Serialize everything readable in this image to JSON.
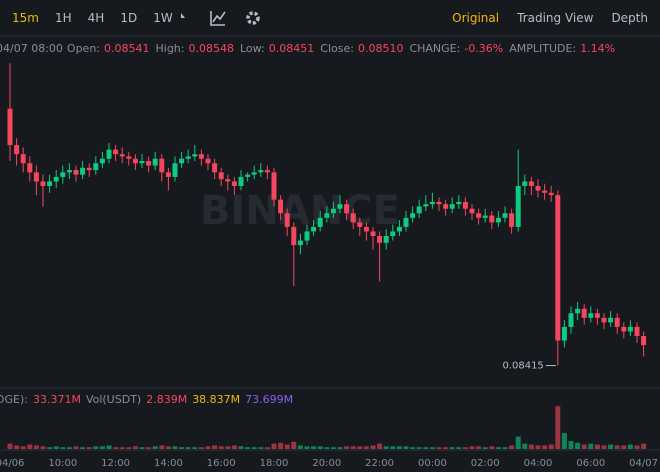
{
  "toolbar": {
    "intervals": [
      "15m",
      "1H",
      "4H",
      "1D",
      "1W"
    ],
    "views": [
      "Original",
      "Trading View",
      "Depth"
    ]
  },
  "info": {
    "time": "04/07 08:00",
    "fields": [
      {
        "label": "Open:",
        "value": "0.08541"
      },
      {
        "label": "High:",
        "value": "0.08548"
      },
      {
        "label": "Low:",
        "value": "0.08451"
      },
      {
        "label": "Close:",
        "value": "0.08510"
      },
      {
        "label": "CHANGE:",
        "value": "-0.36%"
      },
      {
        "label": "AMPLITUDE:",
        "value": "1.14%"
      }
    ]
  },
  "volume_legend": [
    {
      "label": "DGE):",
      "value": "33.371M",
      "color": "#f6465d"
    },
    {
      "label": "Vol(USDT)",
      "value": "2.839M",
      "color": "#f6465d"
    },
    {
      "label": "",
      "value": "38.837M",
      "color": "#f0b90b"
    },
    {
      "label": "",
      "value": "73.699M",
      "color": "#8e5cf7"
    }
  ],
  "chart_data": {
    "type": "candlestick",
    "watermark": "BINANCE",
    "low_label": "0.08415",
    "up_color": "#0ecb81",
    "down_color": "#f6465d",
    "ylim": [
      0.08406,
      0.0856
    ],
    "vlim": [
      0,
      55
    ],
    "categories": [
      "04/06",
      null,
      null,
      null,
      null,
      null,
      null,
      null,
      "10:00",
      null,
      null,
      null,
      null,
      null,
      null,
      null,
      "12:00",
      null,
      null,
      null,
      null,
      null,
      null,
      null,
      "14:00",
      null,
      null,
      null,
      null,
      null,
      null,
      null,
      "16:00",
      null,
      null,
      null,
      null,
      null,
      null,
      null,
      "18:00",
      null,
      null,
      null,
      null,
      null,
      null,
      null,
      "20:00",
      null,
      null,
      null,
      null,
      null,
      null,
      null,
      "22:00",
      null,
      null,
      null,
      null,
      null,
      null,
      null,
      "00:00",
      null,
      null,
      null,
      null,
      null,
      null,
      null,
      "02:00",
      null,
      null,
      null,
      null,
      null,
      null,
      null,
      "04:00",
      null,
      null,
      null,
      null,
      null,
      null,
      null,
      "06:00",
      null,
      null,
      null,
      null,
      null,
      null,
      null,
      "04/07"
    ],
    "candles": [
      [
        0.08528,
        0.08548,
        0.08505,
        0.08512
      ],
      [
        0.08512,
        0.08515,
        0.08503,
        0.08508
      ],
      [
        0.08508,
        0.08511,
        0.085,
        0.08504
      ],
      [
        0.08504,
        0.08507,
        0.08496,
        0.085
      ],
      [
        0.085,
        0.08503,
        0.0849,
        0.08496
      ],
      [
        0.08496,
        0.08499,
        0.08485,
        0.08494
      ],
      [
        0.08494,
        0.08499,
        0.08491,
        0.08496
      ],
      [
        0.08496,
        0.08501,
        0.08493,
        0.08498
      ],
      [
        0.08498,
        0.08503,
        0.08495,
        0.085
      ],
      [
        0.085,
        0.08504,
        0.08497,
        0.08501
      ],
      [
        0.08501,
        0.08503,
        0.08496,
        0.08499
      ],
      [
        0.08499,
        0.08505,
        0.08497,
        0.08502
      ],
      [
        0.08502,
        0.08504,
        0.08498,
        0.08501
      ],
      [
        0.08501,
        0.08507,
        0.08499,
        0.08504
      ],
      [
        0.08504,
        0.08509,
        0.08502,
        0.08506
      ],
      [
        0.08506,
        0.08513,
        0.08504,
        0.0851
      ],
      [
        0.0851,
        0.08512,
        0.08505,
        0.08508
      ],
      [
        0.08508,
        0.08511,
        0.08504,
        0.08507
      ],
      [
        0.08507,
        0.08509,
        0.08503,
        0.08506
      ],
      [
        0.08506,
        0.08508,
        0.08501,
        0.08504
      ],
      [
        0.08504,
        0.08508,
        0.08502,
        0.08505
      ],
      [
        0.08505,
        0.08507,
        0.085,
        0.08503
      ],
      [
        0.08503,
        0.08509,
        0.08501,
        0.08506
      ],
      [
        0.08506,
        0.08508,
        0.08496,
        0.085
      ],
      [
        0.085,
        0.08502,
        0.08492,
        0.08498
      ],
      [
        0.08498,
        0.08507,
        0.08496,
        0.08504
      ],
      [
        0.08504,
        0.08509,
        0.08502,
        0.08506
      ],
      [
        0.08506,
        0.0851,
        0.08504,
        0.08507
      ],
      [
        0.08507,
        0.08512,
        0.08505,
        0.08508
      ],
      [
        0.08508,
        0.0851,
        0.08503,
        0.08506
      ],
      [
        0.08506,
        0.08508,
        0.08501,
        0.08504
      ],
      [
        0.08504,
        0.08506,
        0.08497,
        0.085
      ],
      [
        0.085,
        0.08502,
        0.08494,
        0.08497
      ],
      [
        0.08497,
        0.08499,
        0.08492,
        0.08496
      ],
      [
        0.08496,
        0.08498,
        0.0849,
        0.08494
      ],
      [
        0.08494,
        0.08501,
        0.08492,
        0.08498
      ],
      [
        0.08498,
        0.085,
        0.08496,
        0.08499
      ],
      [
        0.08499,
        0.08503,
        0.08497,
        0.085
      ],
      [
        0.085,
        0.08504,
        0.08498,
        0.08501
      ],
      [
        0.08501,
        0.08503,
        0.08497,
        0.085
      ],
      [
        0.085,
        0.08502,
        0.08485,
        0.08488
      ],
      [
        0.08488,
        0.0849,
        0.08479,
        0.08482
      ],
      [
        0.08482,
        0.08484,
        0.08472,
        0.08476
      ],
      [
        0.08476,
        0.08478,
        0.0845,
        0.08468
      ],
      [
        0.08468,
        0.08473,
        0.08464,
        0.0847
      ],
      [
        0.0847,
        0.08477,
        0.08468,
        0.08474
      ],
      [
        0.08474,
        0.08479,
        0.08472,
        0.08476
      ],
      [
        0.08476,
        0.08483,
        0.08474,
        0.0848
      ],
      [
        0.0848,
        0.08485,
        0.08478,
        0.08482
      ],
      [
        0.08482,
        0.08487,
        0.0848,
        0.08484
      ],
      [
        0.08484,
        0.0849,
        0.08482,
        0.08486
      ],
      [
        0.08486,
        0.08488,
        0.08479,
        0.08482
      ],
      [
        0.08482,
        0.08484,
        0.08475,
        0.08478
      ],
      [
        0.08478,
        0.0848,
        0.08472,
        0.08476
      ],
      [
        0.08476,
        0.08478,
        0.0847,
        0.08474
      ],
      [
        0.08474,
        0.08476,
        0.08466,
        0.08472
      ],
      [
        0.08472,
        0.08474,
        0.08452,
        0.08469
      ],
      [
        0.08469,
        0.08475,
        0.08466,
        0.08472
      ],
      [
        0.08472,
        0.08477,
        0.0847,
        0.08474
      ],
      [
        0.08474,
        0.08479,
        0.08472,
        0.08476
      ],
      [
        0.08476,
        0.08483,
        0.08474,
        0.0848
      ],
      [
        0.0848,
        0.08485,
        0.08478,
        0.08482
      ],
      [
        0.08482,
        0.08488,
        0.0848,
        0.08485
      ],
      [
        0.08485,
        0.0849,
        0.08483,
        0.08486
      ],
      [
        0.08486,
        0.08491,
        0.08484,
        0.08487
      ],
      [
        0.08487,
        0.08489,
        0.08483,
        0.08486
      ],
      [
        0.08486,
        0.08488,
        0.08481,
        0.08484
      ],
      [
        0.08484,
        0.08489,
        0.08482,
        0.08486
      ],
      [
        0.08486,
        0.0849,
        0.08484,
        0.08487
      ],
      [
        0.08487,
        0.08489,
        0.08481,
        0.08484
      ],
      [
        0.08484,
        0.08486,
        0.08479,
        0.08482
      ],
      [
        0.08482,
        0.08484,
        0.08477,
        0.0848
      ],
      [
        0.0848,
        0.08484,
        0.08478,
        0.08481
      ],
      [
        0.08481,
        0.08483,
        0.08475,
        0.08478
      ],
      [
        0.08478,
        0.08483,
        0.08476,
        0.0848
      ],
      [
        0.0848,
        0.08485,
        0.08478,
        0.08482
      ],
      [
        0.08482,
        0.08484,
        0.08473,
        0.08476
      ],
      [
        0.08476,
        0.0851,
        0.08474,
        0.08494
      ],
      [
        0.08494,
        0.08499,
        0.0849,
        0.08496
      ],
      [
        0.08496,
        0.08498,
        0.0849,
        0.08494
      ],
      [
        0.08494,
        0.08497,
        0.08489,
        0.08492
      ],
      [
        0.08492,
        0.08495,
        0.08488,
        0.08491
      ],
      [
        0.08491,
        0.08494,
        0.08487,
        0.0849
      ],
      [
        0.0849,
        0.08492,
        0.08415,
        0.08426
      ],
      [
        0.08426,
        0.08435,
        0.08423,
        0.08432
      ],
      [
        0.08432,
        0.08441,
        0.08429,
        0.08438
      ],
      [
        0.08438,
        0.08443,
        0.08435,
        0.0844
      ],
      [
        0.0844,
        0.08442,
        0.08433,
        0.08436
      ],
      [
        0.08436,
        0.08441,
        0.08434,
        0.08438
      ],
      [
        0.08438,
        0.0844,
        0.08433,
        0.08436
      ],
      [
        0.08436,
        0.08438,
        0.08431,
        0.08434
      ],
      [
        0.08434,
        0.08439,
        0.08432,
        0.08436
      ],
      [
        0.08436,
        0.08438,
        0.08429,
        0.08432
      ],
      [
        0.08432,
        0.08434,
        0.08427,
        0.0843
      ],
      [
        0.0843,
        0.08435,
        0.08428,
        0.08432
      ],
      [
        0.08432,
        0.08434,
        0.08425,
        0.08428
      ],
      [
        0.08428,
        0.0843,
        0.08419,
        0.08424
      ]
    ],
    "volume": [
      6,
      4,
      3,
      5,
      4,
      3,
      2,
      3,
      2,
      2,
      3,
      2,
      2,
      3,
      3,
      4,
      2,
      2,
      2,
      3,
      2,
      2,
      3,
      4,
      3,
      3,
      2,
      2,
      2,
      2,
      3,
      4,
      3,
      3,
      4,
      3,
      2,
      2,
      2,
      2,
      6,
      7,
      5,
      8,
      4,
      3,
      3,
      3,
      2,
      2,
      2,
      3,
      3,
      3,
      3,
      4,
      6,
      3,
      3,
      3,
      3,
      2,
      2,
      2,
      2,
      2,
      2,
      2,
      2,
      2,
      3,
      3,
      2,
      3,
      2,
      2,
      4,
      14,
      6,
      5,
      4,
      4,
      5,
      48,
      18,
      9,
      7,
      5,
      6,
      5,
      4,
      5,
      4,
      4,
      5,
      4,
      6
    ]
  }
}
